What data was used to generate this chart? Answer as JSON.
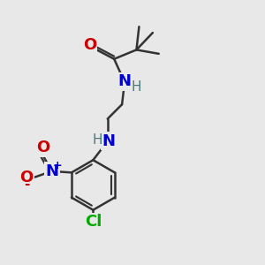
{
  "bg_color": "#e8e8e8",
  "bond_color": "#333333",
  "bond_width": 1.8,
  "atoms": {
    "O": {
      "color": "#cc0000",
      "fontsize": 13
    },
    "N": {
      "color": "#0000cc",
      "fontsize": 13
    },
    "Cl": {
      "color": "#00aa00",
      "fontsize": 13
    },
    "H": {
      "color": "#4a7a7a",
      "fontsize": 11
    },
    "plus": {
      "color": "#0000cc",
      "fontsize": 9
    },
    "minus": {
      "color": "#cc0000",
      "fontsize": 10
    }
  },
  "figsize": [
    3.0,
    3.0
  ],
  "dpi": 100
}
